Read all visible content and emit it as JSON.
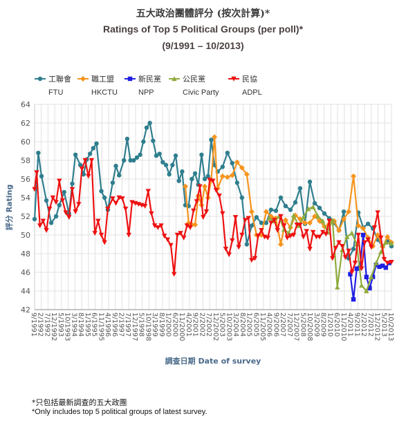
{
  "title_zh": "五大政治團體評分 (按次計算)*",
  "title_en": "Ratings of Top 5 Political Groups (per poll)*",
  "period": "(9/1991 – 10/2013)",
  "footnote_zh": "*只包括最新調查的五大政團",
  "footnote_en": "*Only includes top 5 political groups of latest survey.",
  "chart_data": {
    "type": "line",
    "ylabel": "評分 Rating",
    "xlabel": "調查日期 Date of survey",
    "ylim": [
      42,
      64
    ],
    "yticks": [
      42,
      44,
      46,
      48,
      50,
      52,
      54,
      56,
      58,
      60,
      62,
      64
    ],
    "xlim": [
      1991.67,
      2013.75
    ],
    "xticks": [
      "9/1991",
      "2/1992",
      "7/1992",
      "12/1992",
      "5/1993",
      "10/1993",
      "3/1994",
      "8/1994",
      "1/1995",
      "6/1995",
      "11/1995",
      "4/1996",
      "9/1996",
      "2/1997",
      "7/1997",
      "12/1997",
      "5/1998",
      "10/1998",
      "3/1999",
      "8/1999",
      "1/2000",
      "6/2000",
      "11/2000",
      "4/2001",
      "9/2001",
      "2/2002",
      "7/2002",
      "12/2002",
      "5/2003",
      "10/2003",
      "3/2004",
      "8/2004",
      "1/2005",
      "6/2005",
      "11/2005",
      "4/2006",
      "9/2006",
      "2/2007",
      "7/2007",
      "12/2007",
      "5/2008",
      "10/2008",
      "3/2009",
      "8/2009",
      "1/2010",
      "6/2010",
      "11/2010",
      "4/2011",
      "9/2011",
      "2/2012",
      "7/2012",
      "12/2012",
      "5/2013",
      "10/2013"
    ],
    "legend_position": "top-left",
    "grid": true,
    "series": [
      {
        "name": "工聯會",
        "name_en": "FTU",
        "color": "#2f7e8e",
        "marker": "circle",
        "x": [
          1991.67,
          1991.9,
          1992.1,
          1992.4,
          1992.7,
          1993.0,
          1993.2,
          1993.5,
          1993.8,
          1994.0,
          1994.2,
          1994.5,
          1994.7,
          1994.9,
          1995.1,
          1995.3,
          1995.5,
          1995.8,
          1996.0,
          1996.2,
          1996.5,
          1996.7,
          1996.9,
          1997.2,
          1997.4,
          1997.6,
          1997.8,
          1998.0,
          1998.2,
          1998.4,
          1998.6,
          1998.8,
          1999.0,
          1999.2,
          1999.4,
          1999.6,
          1999.8,
          2000.0,
          2000.2,
          2000.4,
          2000.6,
          2000.8,
          2001.0,
          2001.2,
          2001.4,
          2001.6,
          2001.8,
          2002.0,
          2002.2,
          2002.4,
          2002.6,
          2002.8,
          2003.0,
          2003.3,
          2003.6,
          2003.9,
          2004.2,
          2004.5,
          2004.8,
          2005.1,
          2005.4,
          2005.7,
          2006.0,
          2006.3,
          2006.6,
          2006.9,
          2007.2,
          2007.5,
          2007.8,
          2008.1,
          2008.4,
          2008.7,
          2009.0,
          2009.3,
          2009.6,
          2009.9,
          2010.2,
          2010.5,
          2010.8,
          2011.1,
          2011.4,
          2011.7,
          2012.0,
          2012.3,
          2012.6,
          2012.9,
          2013.2,
          2013.5,
          2013.75
        ],
        "y": [
          51.7,
          58.8,
          56.3,
          53.7,
          51.3,
          52.0,
          53.2,
          54.6,
          52.3,
          55.5,
          58.6,
          57.5,
          56.5,
          58.1,
          58.7,
          59.3,
          59.8,
          54.7,
          54.0,
          52.7,
          55.6,
          57.4,
          56.4,
          58.0,
          60.3,
          58.0,
          58.0,
          58.3,
          58.6,
          60.0,
          61.5,
          62.0,
          60.1,
          58.5,
          58.7,
          57.8,
          57.5,
          56.5,
          57.5,
          58.5,
          55.8,
          56.8,
          53.2,
          53.1,
          56.0,
          56.6,
          55.4,
          58.6,
          56.0,
          56.3,
          60.2,
          57.5,
          56.8,
          57.3,
          58.8,
          57.7,
          55.6,
          54.0,
          49.0,
          51.0,
          51.9,
          51.3,
          51.3,
          52.7,
          52.6,
          54.0,
          53.1,
          52.7,
          53.5,
          55.0,
          51.2,
          55.7,
          53.4,
          52.9,
          52.3,
          51.8,
          51.3,
          50.5,
          52.5,
          47.5,
          48.5,
          52.4,
          50.8,
          51.2,
          50.7,
          49.5,
          48.8,
          49.3,
          48.8
        ]
      },
      {
        "name": "職工盟",
        "name_en": "HKCTU",
        "color": "#f7941d",
        "marker": "diamond",
        "x": [
          2001.0,
          2001.2,
          2001.4,
          2001.6,
          2001.8,
          2002.0,
          2002.2,
          2002.4,
          2002.6,
          2002.8,
          2003.0,
          2003.3,
          2003.6,
          2003.9,
          2004.2,
          2004.5,
          2004.8,
          2005.1,
          2005.4,
          2005.7,
          2006.0,
          2006.3,
          2006.6,
          2006.9,
          2007.2,
          2007.5,
          2007.8,
          2008.1,
          2008.4,
          2008.7,
          2009.0,
          2009.3,
          2009.6,
          2009.9,
          2010.2,
          2010.5,
          2010.8,
          2011.1,
          2011.4,
          2011.7,
          2012.0,
          2012.3,
          2012.6,
          2012.9,
          2013.2,
          2013.5,
          2013.75
        ],
        "y": [
          55.2,
          51.3,
          51.1,
          51.1,
          54.2,
          53.2,
          55.2,
          54.0,
          55.9,
          60.5,
          55.0,
          56.3,
          56.2,
          56.4,
          57.8,
          57.2,
          56.5,
          52.5,
          50.0,
          50.0,
          52.5,
          52.0,
          51.8,
          49.0,
          51.6,
          50.8,
          52.1,
          51.7,
          51.3,
          51.3,
          52.0,
          51.5,
          50.9,
          51.2,
          51.5,
          50.5,
          51.7,
          52.5,
          56.3,
          51.0,
          50.7,
          49.7,
          48.8,
          50.0,
          48.7,
          49.8,
          49.2
        ]
      },
      {
        "name": "新民黨",
        "name_en": "NPP",
        "color": "#1f1fe0",
        "marker": "square",
        "x": [
          2011.2,
          2011.4,
          2011.6,
          2011.8,
          2012.0,
          2012.2,
          2012.4,
          2012.6,
          2012.8,
          2013.0,
          2013.2,
          2013.4,
          2013.6
        ],
        "y": [
          45.8,
          43.1,
          46.4,
          46.5,
          50.0,
          45.5,
          44.3,
          45.5,
          46.8,
          46.6,
          46.7,
          46.5,
          47.0
        ]
      },
      {
        "name": "公民黨",
        "name_en": "Civic Party",
        "color": "#8fab3c",
        "marker": "triangle-up",
        "x": [
          2006.2,
          2006.5,
          2006.8,
          2007.1,
          2007.4,
          2007.7,
          2008.0,
          2008.3,
          2008.6,
          2008.9,
          2009.2,
          2009.5,
          2009.8,
          2010.1,
          2010.4,
          2010.7,
          2011.0,
          2011.3,
          2011.6,
          2011.9,
          2012.2,
          2012.5,
          2012.8,
          2013.1,
          2013.4,
          2013.75
        ],
        "y": [
          51.8,
          51.5,
          52.0,
          50.6,
          50.2,
          52.1,
          51.0,
          51.9,
          52.8,
          53.0,
          52.0,
          51.5,
          50.3,
          51.6,
          44.4,
          48.4,
          49.8,
          50.2,
          49.0,
          44.6,
          44.0,
          45.5,
          47.0,
          48.2,
          49.2,
          49.1
        ]
      },
      {
        "name": "民協",
        "name_en": "ADPL",
        "color": "#ee1111",
        "marker": "triangle-down",
        "x": [
          1991.67,
          1991.8,
          1992.0,
          1992.2,
          1992.4,
          1992.6,
          1992.8,
          1993.0,
          1993.2,
          1993.4,
          1993.6,
          1993.8,
          1994.0,
          1994.2,
          1994.4,
          1994.6,
          1994.8,
          1995.0,
          1995.2,
          1995.4,
          1995.6,
          1995.8,
          1996.0,
          1996.2,
          1996.5,
          1996.7,
          1996.9,
          1997.1,
          1997.3,
          1997.5,
          1997.7,
          1997.9,
          1998.1,
          1998.3,
          1998.5,
          1998.7,
          1998.9,
          1999.1,
          1999.3,
          1999.5,
          1999.7,
          1999.9,
          2000.1,
          2000.3,
          2000.5,
          2000.7,
          2000.9,
          2001.1,
          2001.3,
          2001.5,
          2001.7,
          2001.9,
          2002.1,
          2002.3,
          2002.5,
          2002.7,
          2002.9,
          2003.1,
          2003.3,
          2003.5,
          2003.7,
          2003.9,
          2004.1,
          2004.3,
          2004.5,
          2004.7,
          2004.9,
          2005.1,
          2005.3,
          2005.5,
          2005.7,
          2005.9,
          2006.1,
          2006.3,
          2006.5,
          2006.7,
          2006.9,
          2007.1,
          2007.3,
          2007.5,
          2007.7,
          2007.9,
          2008.1,
          2008.3,
          2008.5,
          2008.7,
          2008.9,
          2009.1,
          2009.3,
          2009.5,
          2009.7,
          2009.9,
          2010.1,
          2010.3,
          2010.5,
          2010.7,
          2010.9,
          2011.1,
          2011.3,
          2011.5,
          2011.7,
          2011.9,
          2012.1,
          2012.3,
          2012.5,
          2012.7,
          2012.9,
          2013.1,
          2013.3,
          2013.5,
          2013.75
        ],
        "y": [
          54.9,
          56.7,
          51.0,
          51.5,
          50.5,
          52.8,
          54.0,
          53.5,
          55.8,
          53.7,
          52.4,
          51.9,
          54.9,
          52.5,
          53.3,
          57.1,
          58.0,
          56.3,
          58.0,
          50.2,
          51.5,
          50.0,
          49.2,
          52.8,
          53.9,
          53.4,
          54.0,
          53.9,
          52.8,
          50.0,
          53.5,
          53.4,
          53.3,
          53.2,
          53.1,
          54.7,
          52.3,
          51.0,
          50.8,
          51.0,
          49.9,
          49.5,
          48.9,
          45.8,
          50.0,
          50.2,
          49.7,
          51.0,
          50.8,
          52.6,
          53.6,
          55.2,
          51.9,
          52.5,
          55.9,
          55.8,
          54.8,
          54.2,
          52.3,
          48.5,
          47.9,
          49.4,
          51.9,
          48.7,
          50.0,
          51.6,
          51.8,
          47.3,
          47.5,
          49.9,
          50.5,
          49.8,
          49.7,
          51.3,
          51.6,
          50.5,
          52.0,
          51.0,
          49.7,
          49.9,
          50.0,
          51.1,
          51.1,
          49.8,
          50.4,
          48.5,
          50.3,
          49.8,
          49.8,
          50.3,
          50.1,
          51.5,
          47.5,
          48.6,
          49.2,
          48.8,
          47.6,
          48.3,
          46.0,
          47.0,
          50.0,
          46.4,
          49.2,
          49.5,
          48.7,
          50.8,
          52.4,
          49.7,
          47.4,
          47.0,
          47.1
        ]
      }
    ]
  }
}
